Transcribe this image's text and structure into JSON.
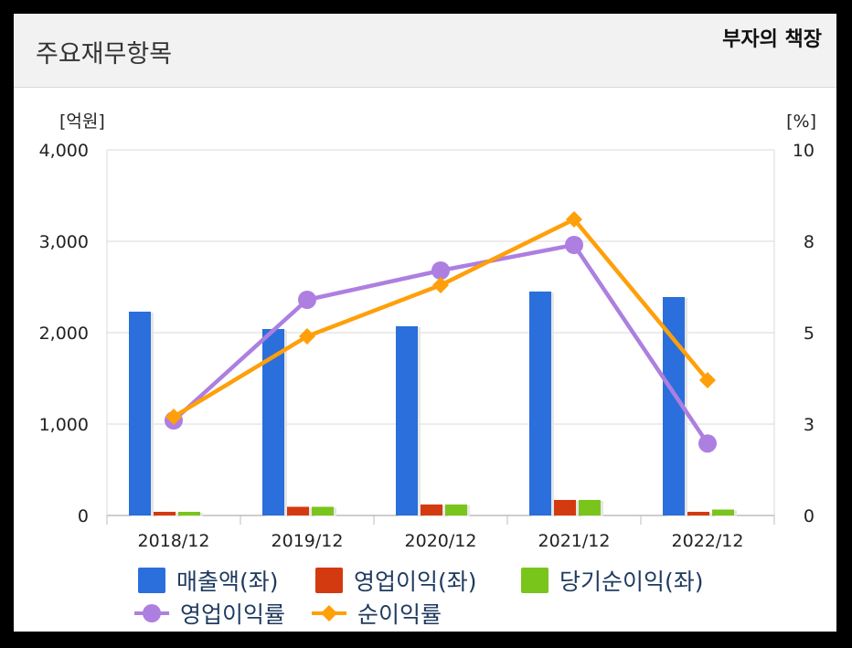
{
  "header": {
    "title": "주요재무항목",
    "brand": "부자의 책장"
  },
  "colors": {
    "revenue": "#2a6fdb",
    "op_income": "#d43a10",
    "net_income": "#7ac51c",
    "op_margin": "#ad7fe0",
    "net_margin": "#ff9f0a"
  },
  "chart_data": {
    "type": "bar",
    "categories": [
      "2018/12",
      "2019/12",
      "2020/12",
      "2021/12",
      "2022/12"
    ],
    "y_left": {
      "unit_label": "[억원]",
      "range": [
        0,
        4000
      ],
      "ticks": [
        0,
        1000,
        2000,
        3000,
        4000
      ],
      "tick_labels": [
        "0",
        "1,000",
        "2,000",
        "3,000",
        "4,000"
      ]
    },
    "y_right": {
      "unit_label": "[%]",
      "range": [
        0,
        10
      ],
      "ticks": [
        0,
        2.5,
        5,
        7.5,
        10
      ],
      "tick_labels": [
        "0",
        "3",
        "5",
        "8",
        "10"
      ]
    },
    "grid": true,
    "legend_position": "bottom",
    "series": [
      {
        "name": "매출액(좌)",
        "kind": "bar",
        "axis": "left",
        "color_key": "revenue",
        "values": [
          2230,
          2040,
          2070,
          2450,
          2390
        ]
      },
      {
        "name": "영업이익(좌)",
        "kind": "bar",
        "axis": "left",
        "color_key": "op_income",
        "values": [
          40,
          95,
          120,
          170,
          40
        ]
      },
      {
        "name": "당기순이익(좌)",
        "kind": "bar",
        "axis": "left",
        "color_key": "net_income",
        "values": [
          40,
          95,
          120,
          170,
          65
        ]
      },
      {
        "name": "영업이익률",
        "kind": "line",
        "marker": "circle",
        "axis": "right",
        "color_key": "op_margin",
        "values": [
          2.6,
          5.9,
          6.7,
          7.4,
          1.97
        ]
      },
      {
        "name": "순이익률",
        "kind": "line",
        "marker": "diamond",
        "axis": "right",
        "color_key": "net_margin",
        "values": [
          2.7,
          4.9,
          6.3,
          8.1,
          3.7
        ]
      }
    ]
  }
}
